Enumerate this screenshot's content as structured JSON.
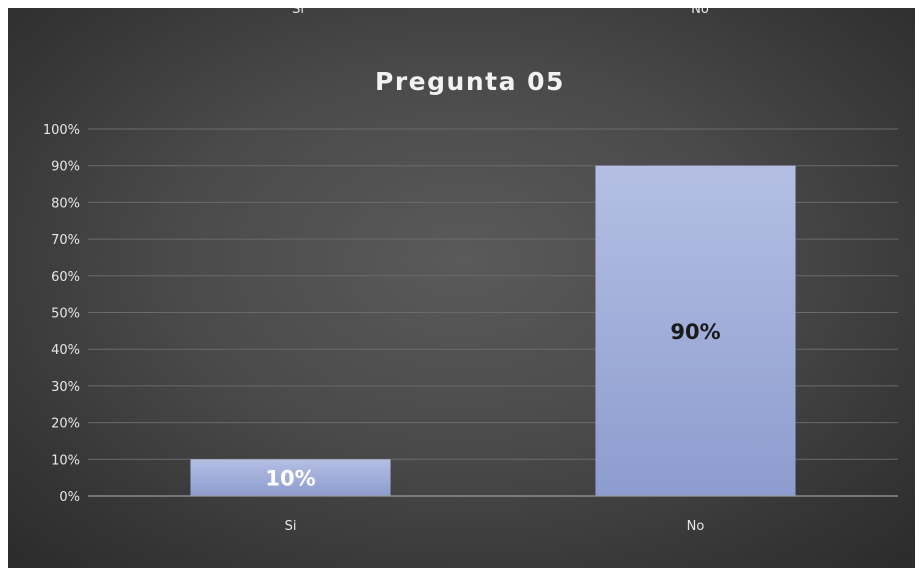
{
  "chart_data": {
    "type": "bar",
    "title": "Pregunta 05",
    "categories": [
      "Si",
      "No"
    ],
    "values": [
      10,
      90
    ],
    "data_labels": [
      "10%",
      "90%"
    ],
    "ylim": [
      0,
      100
    ],
    "y_ticks": [
      "0%",
      "10%",
      "20%",
      "30%",
      "40%",
      "50%",
      "60%",
      "70%",
      "80%",
      "90%",
      "100%"
    ],
    "xlabel": "",
    "ylabel": "",
    "grid": true,
    "legend": "none",
    "colors": {
      "background": "#4a4a4a",
      "bar_top": "#b4bfe3",
      "bar_bottom": "#8d9ccf",
      "gridline": "#6a6a6a",
      "text": "#e6e6e6",
      "label_on_bar_dark": "#1a1a1a",
      "label_on_bar_light": "#ffffff"
    }
  },
  "previous_chart_fragment": {
    "categories": [
      "Si",
      "No"
    ]
  }
}
